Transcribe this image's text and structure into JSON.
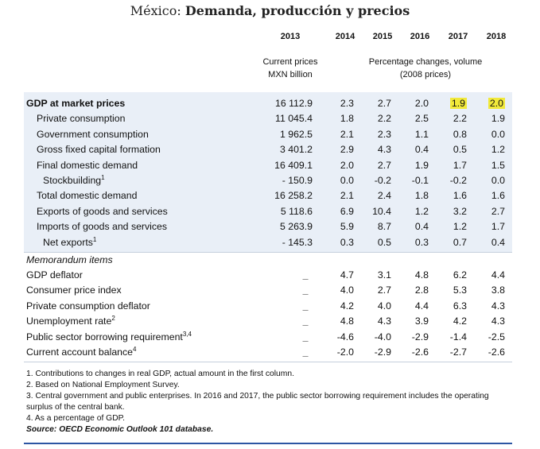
{
  "title": {
    "prefix": "México:",
    "main": "Demanda, producción y precios"
  },
  "years": [
    "2013",
    "2014",
    "2015",
    "2016",
    "2017",
    "2018"
  ],
  "subheads": {
    "base_line1": "Current prices",
    "base_line2": "MXN billion",
    "pct_line1": "Percentage changes, volume",
    "pct_line2": "(2008 prices)"
  },
  "rows": [
    {
      "label": "GDP at market prices",
      "bold": true,
      "indent": 0,
      "v2013": "16 112.9",
      "vals": [
        "2.3",
        "2.7",
        "2.0",
        "1.9",
        "2.0"
      ],
      "highlight": [
        false,
        false,
        false,
        true,
        true
      ]
    },
    {
      "label": "Private consumption",
      "indent": 1,
      "v2013": "11 045.4",
      "vals": [
        "1.8",
        "2.2",
        "2.5",
        "2.2",
        "1.9"
      ]
    },
    {
      "label": "Government consumption",
      "indent": 1,
      "v2013": "1 962.5",
      "vals": [
        "2.1",
        "2.3",
        "1.1",
        "0.8",
        "0.0"
      ]
    },
    {
      "label": "Gross fixed capital formation",
      "indent": 1,
      "v2013": "3 401.2",
      "vals": [
        "2.9",
        "4.3",
        "0.4",
        "0.5",
        "1.2"
      ]
    },
    {
      "label": "Final domestic demand",
      "indent": 1,
      "v2013": "16 409.1",
      "vals": [
        "2.0",
        "2.7",
        "1.9",
        "1.7",
        "1.5"
      ]
    },
    {
      "label": "Stockbuilding",
      "sup": "1",
      "indent": 2,
      "v2013": "- 150.9",
      "vals": [
        "0.0",
        "-0.2",
        "-0.1",
        "-0.2",
        "0.0"
      ]
    },
    {
      "label": "Total domestic demand",
      "indent": 1,
      "v2013": "16 258.2",
      "vals": [
        "2.1",
        "2.4",
        "1.8",
        "1.6",
        "1.6"
      ]
    },
    {
      "label": "Exports of goods and services",
      "indent": 1,
      "v2013": "5 118.6",
      "vals": [
        "6.9",
        "10.4",
        "1.2",
        "3.2",
        "2.7"
      ]
    },
    {
      "label": "Imports of goods and services",
      "indent": 1,
      "v2013": "5 263.9",
      "vals": [
        "5.9",
        "8.7",
        "0.4",
        "1.2",
        "1.7"
      ]
    },
    {
      "label": "Net exports",
      "sup": "1",
      "indent": 2,
      "v2013": "- 145.3",
      "vals": [
        "0.3",
        "0.5",
        "0.3",
        "0.7",
        "0.4"
      ]
    }
  ],
  "memo_title": "Memorandum items",
  "memo_rows": [
    {
      "label": "GDP deflator",
      "v2013": "_",
      "vals": [
        "4.7",
        "3.1",
        "4.8",
        "6.2",
        "4.4"
      ]
    },
    {
      "label": "Consumer price index",
      "v2013": "_",
      "vals": [
        "4.0",
        "2.7",
        "2.8",
        "5.3",
        "3.8"
      ]
    },
    {
      "label": "Private consumption deflator",
      "v2013": "_",
      "vals": [
        "4.2",
        "4.0",
        "4.4",
        "6.3",
        "4.3"
      ]
    },
    {
      "label": "Unemployment rate",
      "sup": "2",
      "v2013": "_",
      "vals": [
        "4.8",
        "4.3",
        "3.9",
        "4.2",
        "4.3"
      ]
    },
    {
      "label": "Public sector borrowing requirement",
      "sup": "3,4",
      "v2013": "_",
      "vals": [
        "-4.6",
        "-4.0",
        "-2.9",
        "-1.4",
        "-2.5"
      ]
    },
    {
      "label": "Current account balance",
      "sup": "4",
      "v2013": "_",
      "vals": [
        "-2.0",
        "-2.9",
        "-2.6",
        "-2.7",
        "-2.6"
      ]
    }
  ],
  "notes": [
    "1.  Contributions to changes in real GDP, actual amount in the first column.",
    "2.  Based on National Employment Survey.",
    "3.  Central government and public enterprises. In 2016 and 2017, the public sector borrowing requirement includes the operating surplus of the central bank.",
    "4.  As a percentage of GDP."
  ],
  "source": "Source:  OECD Economic Outlook 101 database.",
  "colors": {
    "band": "#e9eff7",
    "highlight": "#f1e93a",
    "rule": "#2d56a3"
  }
}
